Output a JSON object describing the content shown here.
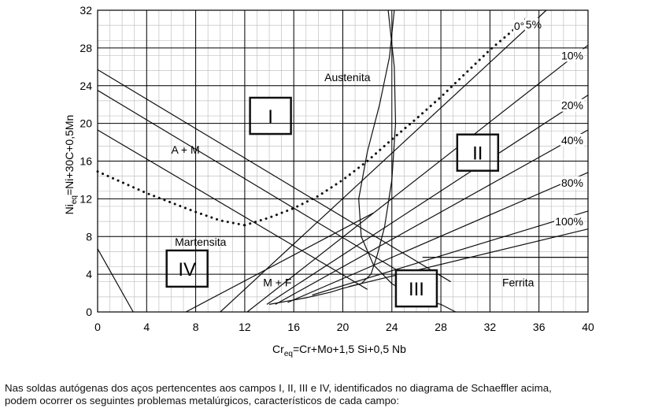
{
  "chart_data": {
    "type": "diagram",
    "title": "",
    "xlabel": {
      "main": "Cr",
      "sub": "eq",
      "rest": "=Cr+Mo+1,5 Si+0,5 Nb"
    },
    "ylabel": {
      "main": "Ni",
      "sub": "eq",
      "rest": "=Ni+30C+0,5Mn"
    },
    "xlim": [
      0,
      40
    ],
    "ylim": [
      0,
      32
    ],
    "x_ticks": [
      "0",
      "4",
      "8",
      "12",
      "16",
      "20",
      "24",
      "28",
      "32",
      "36",
      "40"
    ],
    "y_ticks": [
      "0",
      "4",
      "8",
      "12",
      "16",
      "20",
      "24",
      "28",
      "32"
    ],
    "grid": true,
    "regions": [
      {
        "text": "Austenita",
        "x": 18.5,
        "y": 24.5
      },
      {
        "text": "A + M",
        "x": 6,
        "y": 16.8
      },
      {
        "text": "Martensita",
        "x": 6.3,
        "y": 7
      },
      {
        "text": "M + F",
        "x": 13.5,
        "y": 2.7
      },
      {
        "text": "Ferrita",
        "x": 33,
        "y": 2.7
      }
    ],
    "fields": [
      {
        "label": "I",
        "x": 14.1,
        "y": 20.8
      },
      {
        "label": "II",
        "x": 31,
        "y": 16.9
      },
      {
        "label": "III",
        "x": 26,
        "y": 2.5
      },
      {
        "label": "IV",
        "x": 7.3,
        "y": 4.6
      }
    ],
    "ferrite_lines": [
      {
        "label": "0°",
        "points": [
          [
            12,
            9.2
          ],
          [
            14,
            10
          ],
          [
            16,
            11
          ],
          [
            18,
            12.3
          ],
          [
            20,
            14
          ],
          [
            22,
            16
          ],
          [
            24,
            18.3
          ],
          [
            26,
            20.5
          ],
          [
            28,
            22.8
          ],
          [
            30,
            25.3
          ],
          [
            32,
            27.8
          ],
          [
            34,
            30
          ],
          [
            35.2,
            31.4
          ]
        ]
      },
      {
        "label": "5%",
        "points": [
          [
            10,
            0
          ],
          [
            36.6,
            32
          ]
        ]
      },
      {
        "label": "10%",
        "points": [
          [
            12.2,
            0
          ],
          [
            40,
            28.3
          ]
        ]
      },
      {
        "label": "20%",
        "points": [
          [
            13.8,
            0.8
          ],
          [
            40,
            23
          ]
        ]
      },
      {
        "label": "40%",
        "points": [
          [
            14.5,
            0.8
          ],
          [
            40,
            19.3
          ]
        ]
      },
      {
        "label": "80%",
        "points": [
          [
            15.5,
            1
          ],
          [
            40,
            14.8
          ]
        ]
      },
      {
        "label": "100%",
        "points": [
          [
            17.5,
            1.8
          ],
          [
            40,
            10.7
          ]
        ]
      },
      {
        "label": "",
        "points": [
          [
            20.5,
            2.7
          ],
          [
            40,
            8.8
          ]
        ]
      }
    ],
    "boundaries": [
      {
        "name": "martensite-upper",
        "points": [
          [
            0,
            25.7
          ],
          [
            28.8,
            3.2
          ]
        ]
      },
      {
        "name": "martensite-middle",
        "points": [
          [
            0,
            23.5
          ],
          [
            26,
            3.2
          ]
        ]
      },
      {
        "name": "martensite-lower",
        "points": [
          [
            0,
            19.3
          ],
          [
            22,
            2.4
          ]
        ]
      },
      {
        "name": "martensite-limit",
        "points": [
          [
            0,
            6.7
          ],
          [
            2.9,
            0
          ]
        ]
      },
      {
        "name": "ferrite-start",
        "points": [
          [
            7.2,
            0
          ],
          [
            22.5,
            10.5
          ]
        ]
      },
      {
        "name": "sigma-curve",
        "points": [
          [
            23.7,
            32
          ],
          [
            24.2,
            26
          ],
          [
            24.3,
            20
          ],
          [
            24,
            14
          ],
          [
            23.4,
            9
          ],
          [
            22.8,
            6
          ],
          [
            22.3,
            4
          ],
          [
            21.5,
            3
          ],
          [
            20,
            2.5
          ],
          [
            19,
            2.1
          ],
          [
            17,
            1.5
          ],
          [
            14,
            0.8
          ]
        ]
      },
      {
        "name": "hot-crack-curve",
        "points": [
          [
            24.2,
            32
          ],
          [
            23.8,
            27
          ],
          [
            23,
            22
          ],
          [
            22,
            17
          ],
          [
            21.3,
            12
          ],
          [
            21.5,
            8
          ],
          [
            22.5,
            5
          ],
          [
            24,
            3
          ],
          [
            26,
            1.5
          ],
          [
            28,
            0.8
          ],
          [
            29.2,
            0
          ]
        ]
      },
      {
        "name": "austenite-ferrite-reference",
        "points": [
          [
            26.5,
            5.8
          ],
          [
            40,
            5.8
          ]
        ]
      }
    ]
  },
  "caption": {
    "line1": "Nas soldas autógenas dos aços pertencentes aos campos I, II, III e IV, identificados no diagrama de Schaeffler acima,",
    "line2": "podem ocorrer os seguintes problemas metalúrgicos, característicos de cada campo:"
  }
}
